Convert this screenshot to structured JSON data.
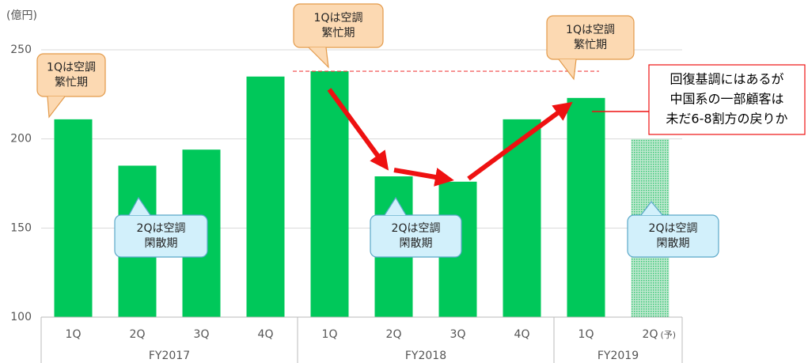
{
  "chart_data": {
    "type": "bar",
    "unit_label": "(億円)",
    "categories": [
      "1Q",
      "2Q",
      "3Q",
      "4Q",
      "1Q",
      "2Q",
      "3Q",
      "4Q",
      "1Q",
      "2Q"
    ],
    "category_notes": [
      null,
      null,
      null,
      null,
      null,
      null,
      null,
      null,
      null,
      "(予)"
    ],
    "groups": [
      {
        "label": "FY2017",
        "span": [
          0,
          3
        ]
      },
      {
        "label": "FY2018",
        "span": [
          4,
          7
        ]
      },
      {
        "label": "FY2019",
        "span": [
          8,
          9
        ]
      }
    ],
    "values": [
      211,
      185,
      194,
      235,
      238,
      179,
      176,
      211,
      223,
      200
    ],
    "bar_styles": [
      "solid",
      "solid",
      "solid",
      "solid",
      "solid",
      "solid",
      "solid",
      "solid",
      "solid",
      "dotted"
    ],
    "color": "#00c85a",
    "ylim": [
      100,
      250
    ],
    "yticks": [
      100,
      150,
      200,
      250
    ],
    "grid": true,
    "reference_line": 238,
    "annotations": [
      {
        "style": "orange",
        "lines": [
          "1Qは空調",
          "繁忙期"
        ]
      },
      {
        "style": "orange",
        "lines": [
          "1Qは空調",
          "繁忙期"
        ]
      },
      {
        "style": "orange",
        "lines": [
          "1Qは空調",
          "繁忙期"
        ]
      },
      {
        "style": "blue",
        "lines": [
          "2Qは空調",
          "閑散期"
        ]
      },
      {
        "style": "blue",
        "lines": [
          "2Qは空調",
          "閑散期"
        ]
      },
      {
        "style": "blue",
        "lines": [
          "2Qは空調",
          "閑散期"
        ]
      },
      {
        "style": "box",
        "lines": [
          "回復基調にはあるが",
          "中国系の一部顧客は",
          "未だ6-8割方の戻りか"
        ]
      }
    ]
  }
}
